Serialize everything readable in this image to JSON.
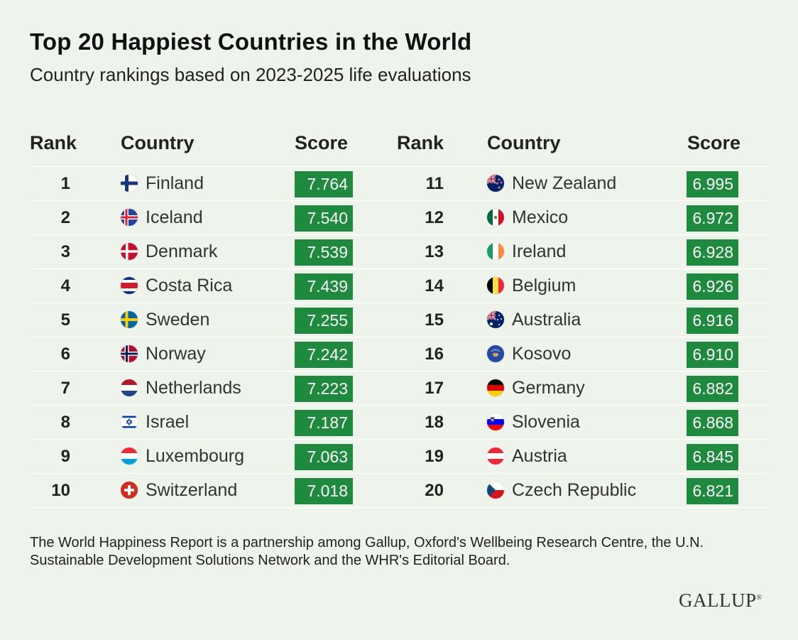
{
  "title": "Top 20 Happiest Countries in the World",
  "subtitle": "Country rankings based on 2023-2025 life evaluations",
  "headers": {
    "rank": "Rank",
    "country": "Country",
    "score": "Score"
  },
  "footnote": "The World Happiness Report is a partnership among Gallup, Oxford's Wellbeing Research Centre, the U.N. Sustainable Development Solutions Network and the WHR's Editorial Board.",
  "logo": "GALLUP",
  "colors": {
    "background": "#eef3ec",
    "score_bar": "#1e8a3e",
    "score_text": "#ffffff"
  },
  "chart_data": {
    "type": "table",
    "title": "Top 20 Happiest Countries in the World",
    "subtitle": "Country rankings based on 2023-2025 life evaluations",
    "columns": [
      "Rank",
      "Country",
      "Score"
    ],
    "rows": [
      {
        "rank": "1",
        "country": "Finland",
        "score": "7.764",
        "value": 7.764,
        "flag": "finland-flag-icon"
      },
      {
        "rank": "2",
        "country": "Iceland",
        "score": "7.540",
        "value": 7.54,
        "flag": "iceland-flag-icon"
      },
      {
        "rank": "3",
        "country": "Denmark",
        "score": "7.539",
        "value": 7.539,
        "flag": "denmark-flag-icon"
      },
      {
        "rank": "4",
        "country": "Costa Rica",
        "score": "7.439",
        "value": 7.439,
        "flag": "costa-rica-flag-icon"
      },
      {
        "rank": "5",
        "country": "Sweden",
        "score": "7.255",
        "value": 7.255,
        "flag": "sweden-flag-icon"
      },
      {
        "rank": "6",
        "country": "Norway",
        "score": "7.242",
        "value": 7.242,
        "flag": "norway-flag-icon"
      },
      {
        "rank": "7",
        "country": "Netherlands",
        "score": "7.223",
        "value": 7.223,
        "flag": "netherlands-flag-icon"
      },
      {
        "rank": "8",
        "country": "Israel",
        "score": "7.187",
        "value": 7.187,
        "flag": "israel-flag-icon"
      },
      {
        "rank": "9",
        "country": "Luxembourg",
        "score": "7.063",
        "value": 7.063,
        "flag": "luxembourg-flag-icon"
      },
      {
        "rank": "10",
        "country": "Switzerland",
        "score": "7.018",
        "value": 7.018,
        "flag": "switzerland-flag-icon"
      },
      {
        "rank": "11",
        "country": "New Zealand",
        "score": "6.995",
        "value": 6.995,
        "flag": "new-zealand-flag-icon"
      },
      {
        "rank": "12",
        "country": "Mexico",
        "score": "6.972",
        "value": 6.972,
        "flag": "mexico-flag-icon"
      },
      {
        "rank": "13",
        "country": "Ireland",
        "score": "6.928",
        "value": 6.928,
        "flag": "ireland-flag-icon"
      },
      {
        "rank": "14",
        "country": "Belgium",
        "score": "6.926",
        "value": 6.926,
        "flag": "belgium-flag-icon"
      },
      {
        "rank": "15",
        "country": "Australia",
        "score": "6.916",
        "value": 6.916,
        "flag": "australia-flag-icon"
      },
      {
        "rank": "16",
        "country": "Kosovo",
        "score": "6.910",
        "value": 6.91,
        "flag": "kosovo-flag-icon"
      },
      {
        "rank": "17",
        "country": "Germany",
        "score": "6.882",
        "value": 6.882,
        "flag": "germany-flag-icon"
      },
      {
        "rank": "18",
        "country": "Slovenia",
        "score": "6.868",
        "value": 6.868,
        "flag": "slovenia-flag-icon"
      },
      {
        "rank": "19",
        "country": "Austria",
        "score": "6.845",
        "value": 6.845,
        "flag": "austria-flag-icon"
      },
      {
        "rank": "20",
        "country": "Czech Republic",
        "score": "6.821",
        "value": 6.821,
        "flag": "czech-republic-flag-icon"
      }
    ]
  }
}
